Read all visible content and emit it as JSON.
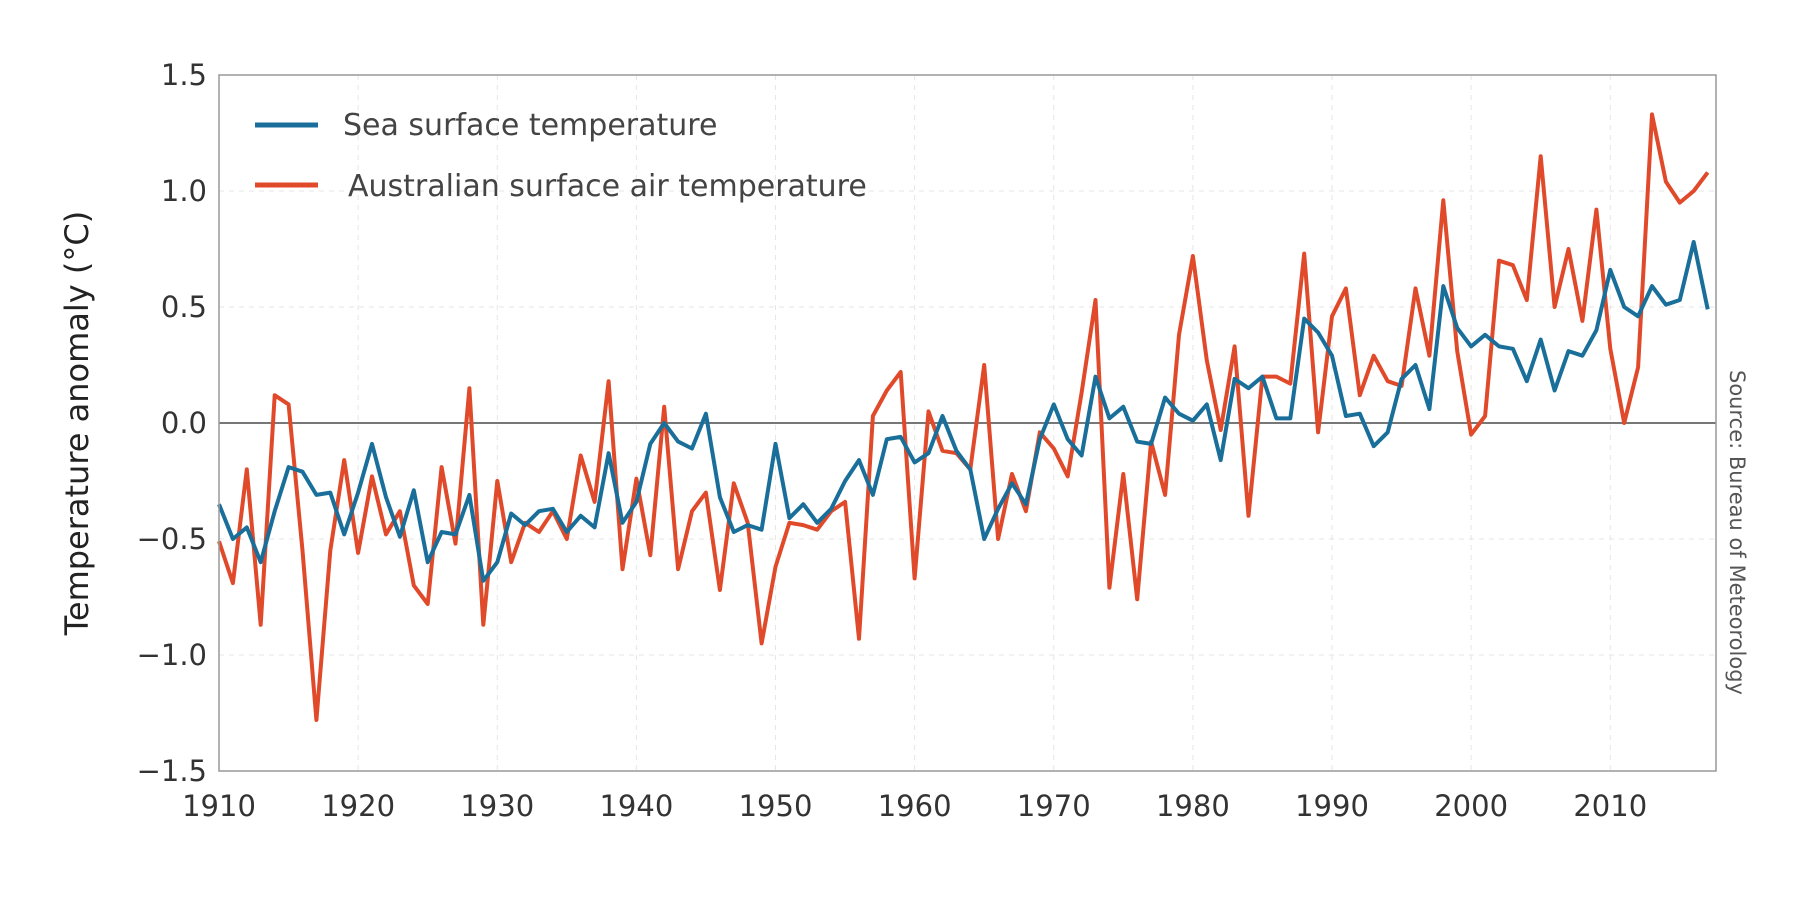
{
  "chart_data": {
    "type": "line",
    "title": "",
    "xlabel": "",
    "ylabel": "Temperature anomaly (°C)",
    "source": "Source: Bureau of Meteorology",
    "xlim": [
      1910,
      2018
    ],
    "ylim": [
      -1.5,
      1.5
    ],
    "x_ticks": [
      1910,
      1920,
      1930,
      1940,
      1950,
      1960,
      1970,
      1980,
      1990,
      2000,
      2010
    ],
    "y_ticks": [
      "1.5",
      "1.0",
      "0.5",
      "0.0",
      "−0.5",
      "−1.0",
      "−1.5"
    ],
    "y_tick_values": [
      1.5,
      1.0,
      0.5,
      0.0,
      -0.5,
      -1.0,
      -1.5
    ],
    "grid": true,
    "legend_position": "top-left",
    "x_start": 1910,
    "series": [
      {
        "name": "Sea surface temperature",
        "color": "#1a6f9a",
        "values": [
          -0.35,
          -0.5,
          -0.45,
          -0.6,
          -0.38,
          -0.19,
          -0.21,
          -0.31,
          -0.3,
          -0.48,
          -0.3,
          -0.09,
          -0.32,
          -0.49,
          -0.29,
          -0.6,
          -0.47,
          -0.48,
          -0.31,
          -0.68,
          -0.6,
          -0.39,
          -0.44,
          -0.38,
          -0.37,
          -0.47,
          -0.4,
          -0.45,
          -0.13,
          -0.43,
          -0.34,
          -0.09,
          0.0,
          -0.08,
          -0.11,
          0.04,
          -0.32,
          -0.47,
          -0.44,
          -0.46,
          -0.09,
          -0.41,
          -0.35,
          -0.43,
          -0.37,
          -0.25,
          -0.16,
          -0.31,
          -0.07,
          -0.06,
          -0.17,
          -0.13,
          0.03,
          -0.12,
          -0.2,
          -0.5,
          -0.37,
          -0.26,
          -0.35,
          -0.07,
          0.08,
          -0.07,
          -0.14,
          0.2,
          0.02,
          0.07,
          -0.08,
          -0.09,
          0.11,
          0.04,
          0.01,
          0.08,
          -0.16,
          0.19,
          0.15,
          0.2,
          0.02,
          0.02,
          0.45,
          0.39,
          0.29,
          0.03,
          0.04,
          -0.1,
          -0.04,
          0.19,
          0.25,
          0.06,
          0.59,
          0.41,
          0.33,
          0.38,
          0.33,
          0.32,
          0.18,
          0.36,
          0.14,
          0.31,
          0.29,
          0.4,
          0.66,
          0.5,
          0.46,
          0.59,
          0.51,
          0.53,
          0.78,
          0.49
        ]
      },
      {
        "name": "Australian surface air temperature",
        "color": "#e04a2a",
        "values": [
          -0.51,
          -0.69,
          -0.2,
          -0.87,
          0.12,
          0.08,
          -0.55,
          -1.28,
          -0.55,
          -0.16,
          -0.56,
          -0.23,
          -0.48,
          -0.38,
          -0.7,
          -0.78,
          -0.19,
          -0.52,
          0.15,
          -0.87,
          -0.25,
          -0.6,
          -0.43,
          -0.47,
          -0.38,
          -0.5,
          -0.14,
          -0.34,
          0.18,
          -0.63,
          -0.24,
          -0.57,
          0.07,
          -0.63,
          -0.38,
          -0.3,
          -0.72,
          -0.26,
          -0.43,
          -0.95,
          -0.62,
          -0.43,
          -0.44,
          -0.46,
          -0.38,
          -0.34,
          -0.93,
          0.03,
          0.14,
          0.22,
          -0.67,
          0.05,
          -0.12,
          -0.13,
          -0.2,
          0.25,
          -0.5,
          -0.22,
          -0.38,
          -0.04,
          -0.11,
          -0.23,
          0.13,
          0.53,
          -0.71,
          -0.22,
          -0.76,
          -0.08,
          -0.31,
          0.38,
          0.72,
          0.27,
          -0.03,
          0.33,
          -0.4,
          0.2,
          0.2,
          0.17,
          0.73,
          -0.04,
          0.46,
          0.58,
          0.12,
          0.29,
          0.18,
          0.16,
          0.58,
          0.29,
          0.96,
          0.31,
          -0.05,
          0.03,
          0.7,
          0.68,
          0.53,
          1.15,
          0.5,
          0.75,
          0.44,
          0.92,
          0.32,
          0.0,
          0.24,
          1.33,
          1.04,
          0.95,
          1.0,
          1.08
        ]
      }
    ]
  }
}
